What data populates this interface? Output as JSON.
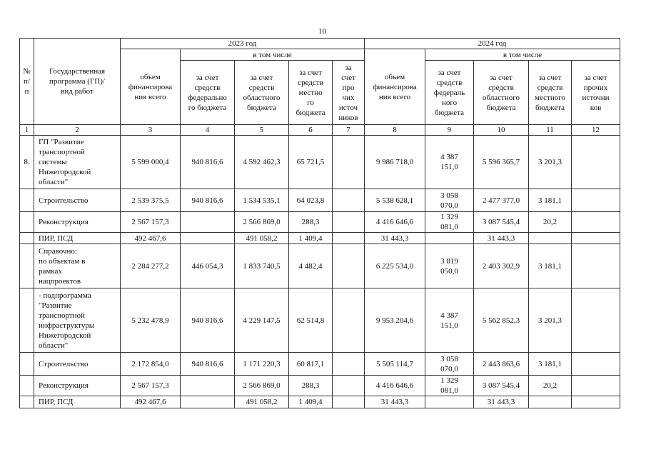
{
  "page_number": "10",
  "header": {
    "col_num": "№\nп/\nп",
    "col_program": "Государственная\nпрограмма (ГП)/\nвид работ",
    "years": [
      "2023 год",
      "2024 год"
    ],
    "including": "в том числе",
    "cols_2023": [
      "объем\nфинансирова\nния всего",
      "за счет\nсредств\nфедерально\nго бюджета",
      "за счет\nсредств\nобластного\nбюджета",
      "за счет\nсредств\nместно\nго\nбюджета",
      "за\nсчет\nпро\nчих\nисточ\nников"
    ],
    "cols_2024": [
      "объем\nфинансирова\nния всего",
      "за счет\nсредств\nфедераль\nного\nбюджета",
      "за счет\nсредств\nобластного\nбюджета",
      "за счет\nсредств\nместного\nбюджета",
      "за счет\nпрочих\nисточни\nков"
    ],
    "numbers": [
      "1",
      "2",
      "3",
      "4",
      "5",
      "6",
      "7",
      "8",
      "9",
      "10",
      "11",
      "12"
    ]
  },
  "rows": [
    {
      "num": "8.",
      "name": "ГП  \"Развитие\nтранспортной\nсистемы\nНижегородской\nобласти\"",
      "v": [
        "5 599 000,4",
        "940 816,6",
        "4 592 462,3",
        "65 721,5",
        "",
        "9 986 718,0",
        "4 387\n151,0",
        "5 596 365,7",
        "3 201,3",
        ""
      ]
    },
    {
      "num": "",
      "name": "Строительство",
      "v": [
        "2 539 375,5",
        "940 816,6",
        "1 534 535,1",
        "64 023,8",
        "",
        "5 538 628,1",
        "3 058\n070,0",
        "2 477 377,0",
        "3 181,1",
        ""
      ]
    },
    {
      "num": "",
      "name": "Реконструкция",
      "v": [
        "2 567 157,3",
        "",
        "2 566 869,0",
        "288,3",
        "",
        "4 416 646,6",
        "1 329\n081,0",
        "3 087 545,4",
        "20,2",
        ""
      ]
    },
    {
      "num": "",
      "name": "ПИР, ПСД",
      "v": [
        "492 467,6",
        "",
        "491 058,2",
        "1 409,4",
        "",
        "31 443,3",
        "",
        "31 443,3",
        "",
        ""
      ]
    },
    {
      "num": "",
      "name": "Справочно:\nпо объектам в\nрамках\nнацпроектов",
      "v": [
        "2 284 277,2",
        "446 054,3",
        "1 833 740,5",
        "4 482,4",
        "",
        "6 225 534,0",
        "3 819\n050,0",
        "2 403 302,9",
        "3 181,1",
        ""
      ]
    },
    {
      "num": "",
      "name": " - подпрограмма\n\"Развитие\nтранспортной\nинфраструктуры\nНижегородской\nобласти\"",
      "v": [
        "5 232 478,9",
        "940 816,6",
        "4 229 147,5",
        "62 514,8",
        "",
        "9 953 204,6",
        "4 387\n151,0",
        "5 562 852,3",
        "3 201,3",
        ""
      ]
    },
    {
      "num": "",
      "name": "Строительство",
      "v": [
        "2 172 854,0",
        "940 816,6",
        "1 171 220,3",
        "60 817,1",
        "",
        "5 505 114,7",
        "3 058\n070,0",
        "2 443 863,6",
        "3 181,1",
        ""
      ]
    },
    {
      "num": "",
      "name": "Реконструкция",
      "v": [
        "2 567 157,3",
        "",
        "2 566 869,0",
        "288,3",
        "",
        "4 416 646,6",
        "1 329\n081,0",
        "3 087 545,4",
        "20,2",
        ""
      ]
    },
    {
      "num": "",
      "name": "ПИР, ПСД",
      "v": [
        "492 467,6",
        "",
        "491 058,2",
        "1 409,4",
        "",
        "31 443,3",
        "",
        "31 443,3",
        "",
        ""
      ]
    }
  ]
}
